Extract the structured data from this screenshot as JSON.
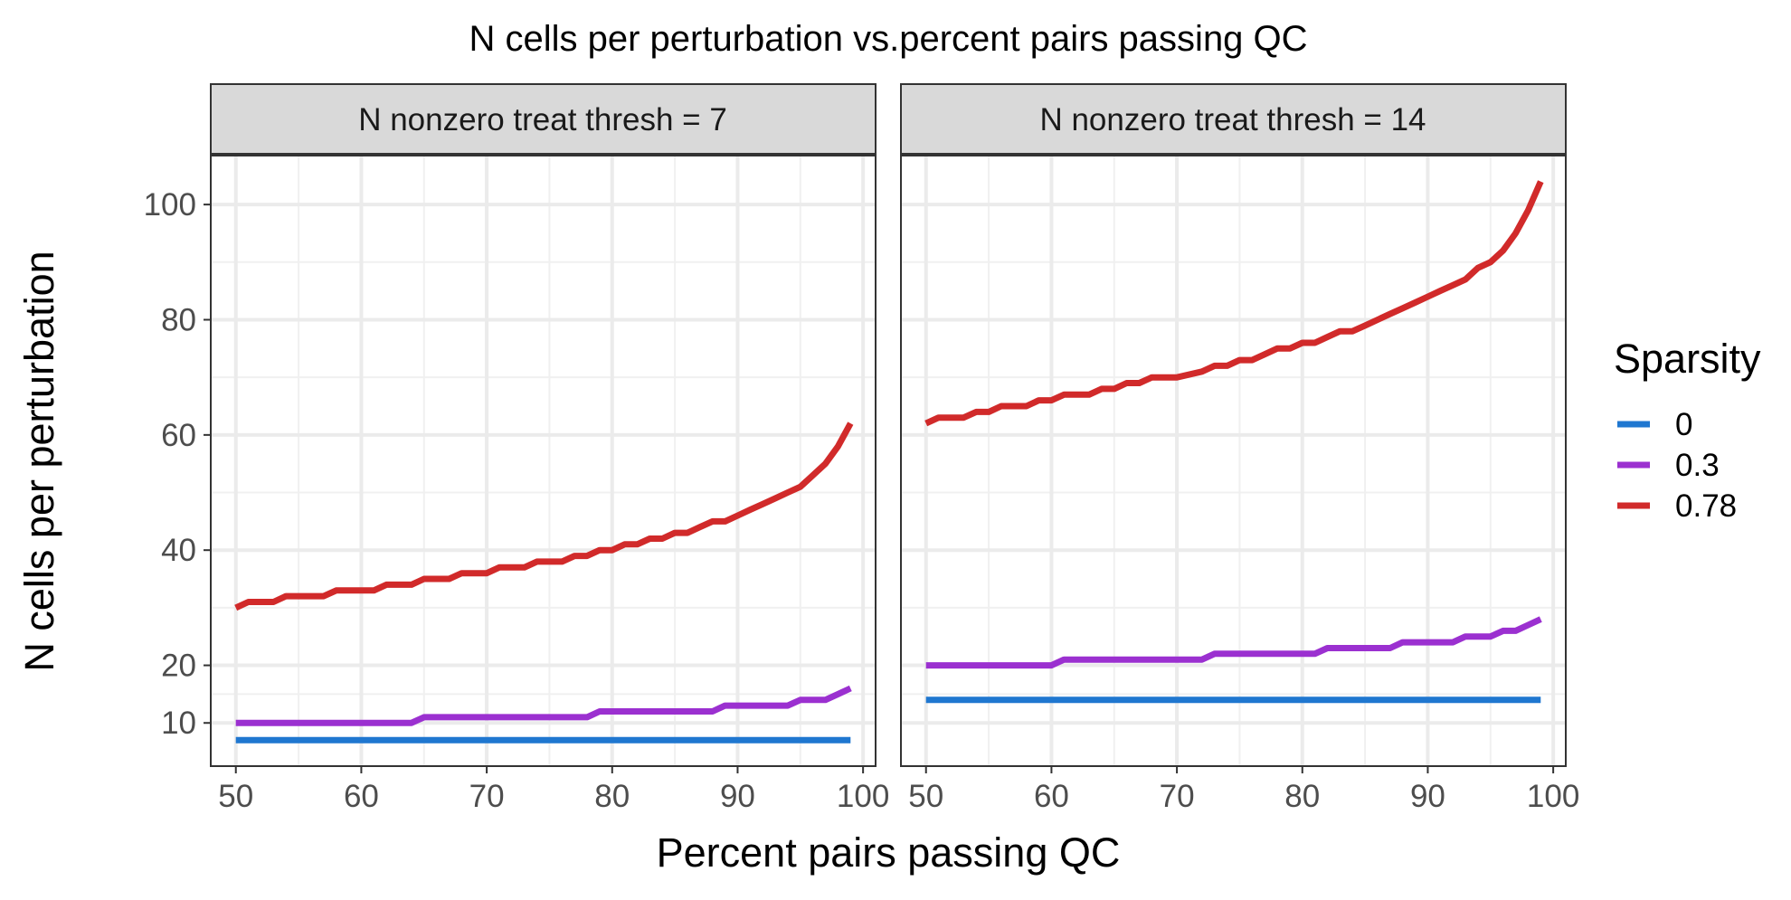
{
  "chart_data": {
    "type": "line",
    "title": "N cells per perturbation vs.percent pairs passing QC",
    "xlabel": "Percent pairs passing QC",
    "ylabel": "N cells per perturbation",
    "xlim": [
      48,
      101
    ],
    "ylim": [
      2.5,
      108.5
    ],
    "x_ticks": [
      50,
      60,
      70,
      80,
      90,
      100
    ],
    "y_ticks": [
      10,
      20,
      40,
      60,
      80,
      100
    ],
    "grid": true,
    "legend": {
      "title": "Sparsity",
      "placement": "right",
      "entries": [
        {
          "label": "0",
          "color": "#1f77d0"
        },
        {
          "label": "0.3",
          "color": "#9b30d0"
        },
        {
          "label": "0.78",
          "color": "#d12a2a"
        }
      ]
    },
    "panels": [
      {
        "label": "N nonzero treat thresh = 7",
        "series": [
          {
            "name": "0",
            "color": "#1f77d0",
            "x": [
              50,
              99
            ],
            "y": [
              7,
              7
            ]
          },
          {
            "name": "0.3",
            "color": "#9b30d0",
            "x": [
              50,
              64,
              65,
              78,
              79,
              88,
              89,
              94,
              95,
              97,
              98,
              99
            ],
            "y": [
              10,
              10,
              11,
              11,
              12,
              12,
              13,
              13,
              14,
              14,
              15,
              16
            ]
          },
          {
            "name": "0.78",
            "color": "#d12a2a",
            "x": [
              50,
              51,
              53,
              54,
              57,
              58,
              61,
              62,
              64,
              65,
              67,
              68,
              70,
              71,
              73,
              74,
              76,
              77,
              78,
              79,
              80,
              81,
              82,
              83,
              84,
              85,
              86,
              87,
              88,
              89,
              90,
              91,
              92,
              93,
              94,
              95,
              96,
              97,
              98,
              99
            ],
            "y": [
              30,
              31,
              31,
              32,
              32,
              33,
              33,
              34,
              34,
              35,
              35,
              36,
              36,
              37,
              37,
              38,
              38,
              39,
              39,
              40,
              40,
              41,
              41,
              42,
              42,
              43,
              43,
              44,
              45,
              45,
              46,
              47,
              48,
              49,
              50,
              51,
              53,
              55,
              58,
              62
            ]
          }
        ]
      },
      {
        "label": "N nonzero treat thresh = 14",
        "series": [
          {
            "name": "0",
            "color": "#1f77d0",
            "x": [
              50,
              99
            ],
            "y": [
              14,
              14
            ]
          },
          {
            "name": "0.3",
            "color": "#9b30d0",
            "x": [
              50,
              60,
              61,
              72,
              73,
              81,
              82,
              87,
              88,
              92,
              93,
              95,
              96,
              97,
              98,
              99
            ],
            "y": [
              20,
              20,
              21,
              21,
              22,
              22,
              23,
              23,
              24,
              24,
              25,
              25,
              26,
              26,
              27,
              28
            ]
          },
          {
            "name": "0.78",
            "color": "#d12a2a",
            "x": [
              50,
              51,
              53,
              54,
              55,
              56,
              58,
              59,
              60,
              61,
              63,
              64,
              65,
              66,
              67,
              68,
              69,
              70,
              72,
              73,
              74,
              75,
              76,
              77,
              78,
              79,
              80,
              81,
              82,
              83,
              84,
              85,
              86,
              87,
              88,
              89,
              90,
              91,
              92,
              93,
              94,
              95,
              96,
              97,
              98,
              99
            ],
            "y": [
              62,
              63,
              63,
              64,
              64,
              65,
              65,
              66,
              66,
              67,
              67,
              68,
              68,
              69,
              69,
              70,
              70,
              70,
              71,
              72,
              72,
              73,
              73,
              74,
              75,
              75,
              76,
              76,
              77,
              78,
              78,
              79,
              80,
              81,
              82,
              83,
              84,
              85,
              86,
              87,
              89,
              90,
              92,
              95,
              99,
              104
            ]
          }
        ]
      }
    ]
  }
}
